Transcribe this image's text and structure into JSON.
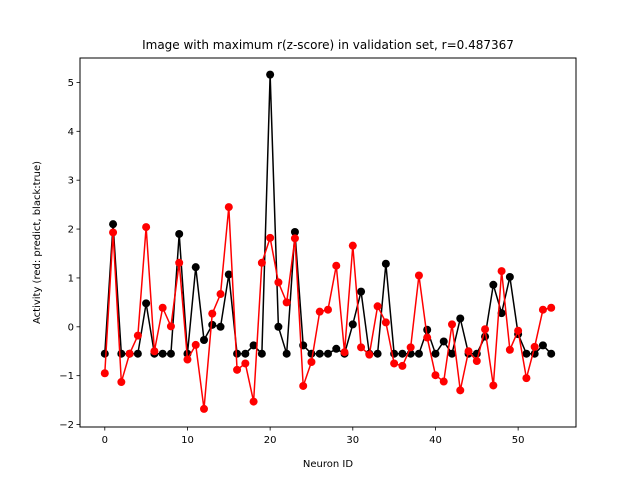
{
  "chart_data": {
    "type": "line",
    "title": "Image with maximum r(z-score) in validation set, r=0.487367",
    "xlabel": "Neuron ID",
    "ylabel": "Activity (red: predict, black:true)",
    "xlim": [
      -3,
      57
    ],
    "ylim": [
      -2.05,
      5.5
    ],
    "xticks": [
      0,
      10,
      20,
      30,
      40,
      50
    ],
    "yticks": [
      -2,
      -1,
      0,
      1,
      2,
      3,
      4,
      5
    ],
    "grid": false,
    "x": [
      0,
      1,
      2,
      3,
      4,
      5,
      6,
      7,
      8,
      9,
      10,
      11,
      12,
      13,
      14,
      15,
      16,
      17,
      18,
      19,
      20,
      21,
      22,
      23,
      24,
      25,
      26,
      27,
      28,
      29,
      30,
      31,
      32,
      33,
      34,
      35,
      36,
      37,
      38,
      39,
      40,
      41,
      42,
      43,
      44,
      45,
      46,
      47,
      48,
      49,
      50,
      51,
      52,
      53,
      54
    ],
    "series": [
      {
        "name": "true",
        "color": "#000000",
        "values": [
          -0.55,
          2.1,
          -0.55,
          -0.55,
          -0.55,
          0.48,
          -0.55,
          -0.55,
          -0.55,
          1.9,
          -0.55,
          1.22,
          -0.27,
          0.04,
          0.0,
          1.07,
          -0.55,
          -0.55,
          -0.38,
          -0.55,
          5.16,
          0.0,
          -0.55,
          1.94,
          -0.38,
          -0.55,
          -0.55,
          -0.55,
          -0.45,
          -0.55,
          0.05,
          0.72,
          -0.55,
          -0.55,
          1.29,
          -0.55,
          -0.55,
          -0.55,
          -0.55,
          -0.06,
          -0.55,
          -0.3,
          -0.55,
          0.17,
          -0.55,
          -0.55,
          -0.2,
          0.86,
          0.28,
          1.02,
          -0.15,
          -0.55,
          -0.55,
          -0.38,
          -0.55
        ]
      },
      {
        "name": "predict",
        "color": "#ff0000",
        "values": [
          -0.95,
          1.93,
          -1.13,
          -0.55,
          -0.18,
          2.04,
          -0.5,
          0.39,
          0.01,
          1.31,
          -0.67,
          -0.37,
          -1.68,
          0.27,
          0.67,
          2.45,
          -0.88,
          -0.75,
          -1.53,
          1.31,
          1.82,
          0.91,
          0.5,
          1.81,
          -1.21,
          -0.72,
          0.31,
          0.35,
          1.25,
          -0.52,
          1.66,
          -0.42,
          -0.57,
          0.42,
          0.09,
          -0.75,
          -0.8,
          -0.42,
          1.05,
          -0.22,
          -0.99,
          -1.12,
          0.05,
          -1.3,
          -0.5,
          -0.7,
          -0.05,
          -1.2,
          1.14,
          -0.47,
          -0.08,
          -1.05,
          -0.41,
          0.35,
          0.39
        ]
      }
    ]
  }
}
